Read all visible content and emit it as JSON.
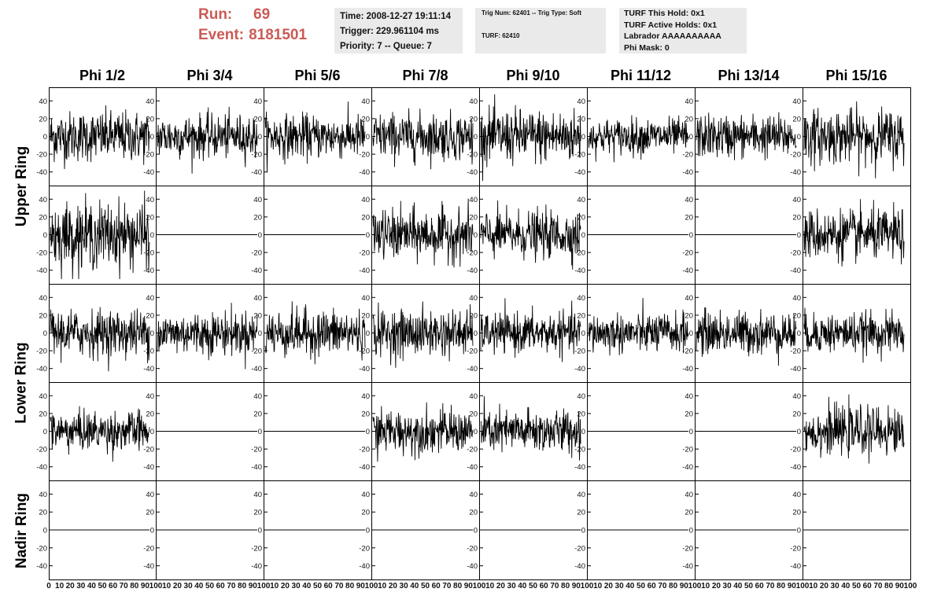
{
  "header": {
    "run_label": "Run:",
    "run_value": "69",
    "event_label": "Event:",
    "event_value": "8181501",
    "colors": {
      "run_text": "#cc5a55",
      "panel_bg": "#eaeaea"
    }
  },
  "info_time": {
    "time": "Time: 2008-12-27 19:11:14",
    "trigger": "Trigger: 229.961104 ms",
    "priority": "Priority: 7 -- Queue: 7"
  },
  "info_trig": {
    "trig_line": "Trig Num: 62401 -- Trig Type: Soft",
    "turf_line": "TURF: 62410"
  },
  "info_turf": {
    "hold": "TURF This Hold: 0x1",
    "active": "TURF Active Holds: 0x1",
    "labrador": "Labrador AAAAAAAAAA",
    "phimask": "Phi Mask: 0"
  },
  "columns": [
    "Phi 1/2",
    "Phi 3/4",
    "Phi 5/6",
    "Phi 7/8",
    "Phi 9/10",
    "Phi 11/12",
    "Phi 13/14",
    "Phi 15/16"
  ],
  "row_labels": {
    "upper": "Upper Ring",
    "lower": "Lower Ring",
    "nadir": "Nadir Ring"
  },
  "chart_data": {
    "type": "line",
    "description_free": true,
    "ylim": [
      -50,
      50
    ],
    "xlim": [
      0,
      100
    ],
    "y_ticks": [
      -40,
      -20,
      0,
      20,
      40
    ],
    "x_tick_labels_rendered": [
      "0",
      "10",
      "20",
      "30",
      "40",
      "50",
      "60",
      "70",
      "80",
      "90",
      "100"
    ],
    "grid": false,
    "panel_rows": 5,
    "panel_cols": 8,
    "active": [
      [
        1,
        1,
        1,
        1,
        1,
        1,
        1,
        1
      ],
      [
        1,
        0,
        0,
        1,
        1,
        0,
        0,
        1
      ],
      [
        1,
        1,
        1,
        1,
        1,
        1,
        1,
        1
      ],
      [
        1,
        0,
        0,
        1,
        1,
        0,
        0,
        1
      ],
      [
        0,
        0,
        0,
        0,
        0,
        0,
        0,
        0
      ]
    ],
    "amplitude": [
      [
        14,
        12,
        12,
        13,
        15,
        10,
        12,
        15
      ],
      [
        18,
        0,
        0,
        14,
        13,
        0,
        0,
        14
      ],
      [
        13,
        12,
        13,
        13,
        11,
        11,
        12,
        11
      ],
      [
        11,
        0,
        0,
        12,
        12,
        0,
        0,
        13
      ],
      [
        0,
        0,
        0,
        0,
        0,
        0,
        0,
        0
      ]
    ],
    "samples_per_trace": 260
  }
}
